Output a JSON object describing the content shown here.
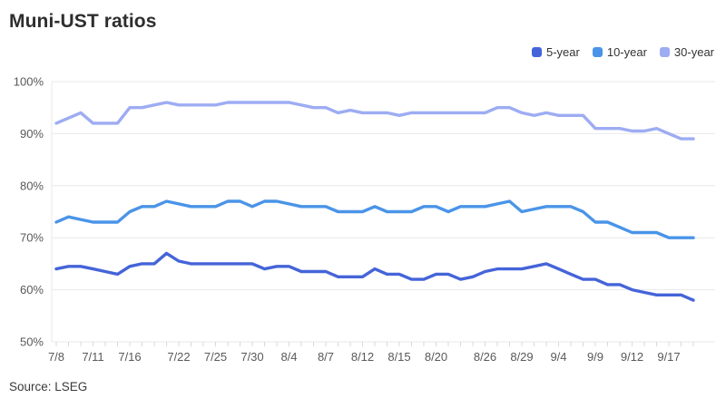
{
  "title": "Muni-UST ratios",
  "source": "Source: LSEG",
  "colors": {
    "grid": "#e9e9e9",
    "tick": "#d9d9d9",
    "axis_text": "#595959",
    "title_text": "#2e2e2e"
  },
  "legend": [
    {
      "label": "5-year",
      "color": "#4564D9"
    },
    {
      "label": "10-year",
      "color": "#4A94E8"
    },
    {
      "label": "30-year",
      "color": "#9DACF3"
    }
  ],
  "chart_data": {
    "type": "line",
    "title": "Muni-UST ratios",
    "xlabel": "",
    "ylabel": "",
    "ylim": [
      50,
      100
    ],
    "grid": "horizontal",
    "legend_position": "top-right",
    "y_ticks": [
      100,
      90,
      80,
      70,
      60,
      50
    ],
    "y_tick_suffix": "%",
    "x": [
      "7/8",
      "7/9",
      "7/10",
      "7/11",
      "7/14",
      "7/15",
      "7/16",
      "7/17",
      "7/18",
      "7/21",
      "7/22",
      "7/23",
      "7/24",
      "7/25",
      "7/28",
      "7/29",
      "7/30",
      "7/31",
      "8/1",
      "8/4",
      "8/5",
      "8/6",
      "8/7",
      "8/8",
      "8/11",
      "8/12",
      "8/13",
      "8/14",
      "8/15",
      "8/18",
      "8/19",
      "8/20",
      "8/21",
      "8/22",
      "8/25",
      "8/26",
      "8/27",
      "8/28",
      "8/29",
      "9/2",
      "9/3",
      "9/4",
      "9/5",
      "9/8",
      "9/9",
      "9/10",
      "9/11",
      "9/12",
      "9/15",
      "9/16",
      "9/17",
      "9/18",
      "9/19"
    ],
    "x_tick_labels": [
      "7/8",
      "7/11",
      "7/16",
      "7/22",
      "7/25",
      "7/30",
      "8/4",
      "8/7",
      "8/12",
      "8/15",
      "8/20",
      "8/26",
      "8/29",
      "9/4",
      "9/9",
      "9/12",
      "9/17"
    ],
    "x_tick_indices": [
      0,
      3,
      6,
      10,
      13,
      16,
      19,
      22,
      25,
      28,
      31,
      35,
      38,
      41,
      44,
      47,
      50
    ],
    "series": [
      {
        "name": "5-year",
        "color": "#4564D9",
        "values": [
          64,
          64.5,
          64.5,
          64,
          63.5,
          63,
          64.5,
          65,
          65,
          67,
          65.5,
          65,
          65,
          65,
          65,
          65,
          65,
          64,
          64.5,
          64.5,
          63.5,
          63.5,
          63.5,
          62.5,
          62.5,
          62.5,
          64,
          63,
          63,
          62,
          62,
          63,
          63,
          62,
          62.5,
          63.5,
          64,
          64,
          64,
          64.5,
          65,
          64,
          63,
          62,
          62,
          61,
          61,
          60,
          59.5,
          59,
          59,
          59,
          58
        ]
      },
      {
        "name": "10-year",
        "color": "#4A94E8",
        "values": [
          73,
          74,
          73.5,
          73,
          73,
          73,
          75,
          76,
          76,
          77,
          76.5,
          76,
          76,
          76,
          77,
          77,
          76,
          77,
          77,
          76.5,
          76,
          76,
          76,
          75,
          75,
          75,
          76,
          75,
          75,
          75,
          76,
          76,
          75,
          76,
          76,
          76,
          76.5,
          77,
          75,
          75.5,
          76,
          76,
          76,
          75,
          73,
          73,
          72,
          71,
          71,
          71,
          70,
          70,
          70
        ]
      },
      {
        "name": "30-year",
        "color": "#9DACF3",
        "values": [
          92,
          93,
          94,
          92,
          92,
          92,
          95,
          95,
          95.5,
          96,
          95.5,
          95.5,
          95.5,
          95.5,
          96,
          96,
          96,
          96,
          96,
          96,
          95.5,
          95,
          95,
          94,
          94.5,
          94,
          94,
          94,
          93.5,
          94,
          94,
          94,
          94,
          94,
          94,
          94,
          95,
          95,
          94,
          93.5,
          94,
          93.5,
          93.5,
          93.5,
          91,
          91,
          91,
          90.5,
          90.5,
          91,
          90,
          89,
          89
        ]
      }
    ]
  }
}
